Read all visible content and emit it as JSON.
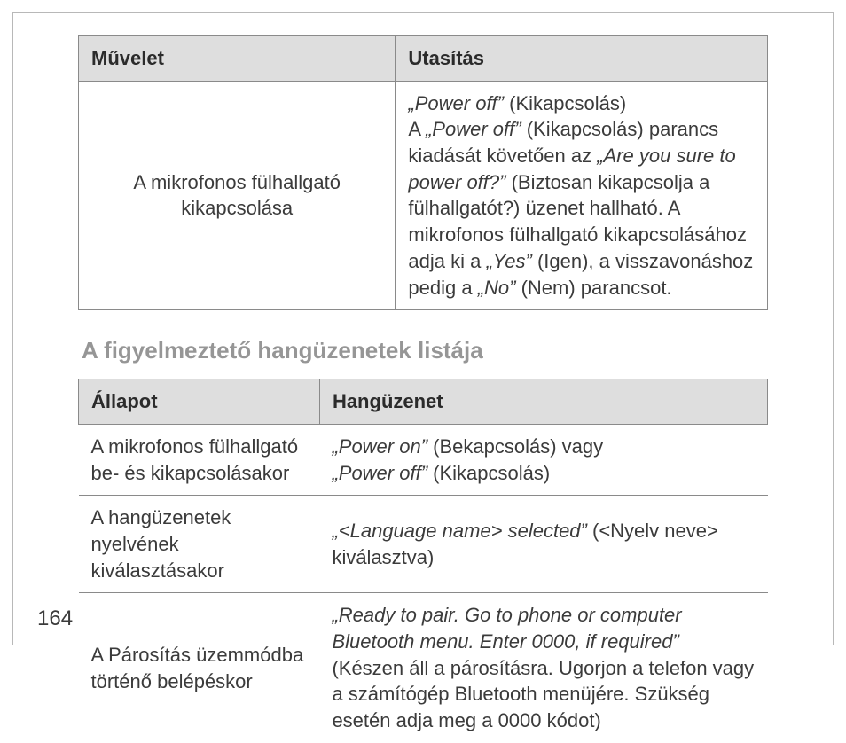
{
  "page_number": "164",
  "table1": {
    "col_widths_pct": [
      46,
      54
    ],
    "header": [
      "Művelet",
      "Utasítás"
    ],
    "row": {
      "left": "A mikrofonos fülhallgató kikapcsolása",
      "right_html": "<span class=\"em\">„Power off”</span> (Kikapcsolás)<br>A <span class=\"em\">„Power off”</span> (Kikapcsolás) parancs kiadását követően az <span class=\"em\">„Are you sure to power off?”</span> (Biztosan kikapcsolja a fülhallgatót?) üzenet hallható. A mikrofonos fülhallgató kikapcsolásához adja ki a <span class=\"em\">„Yes”</span> (Igen), a visszavonáshoz pedig a <span class=\"em\">„No”</span> (Nem) parancsot."
    }
  },
  "section_title": "A figyelmeztető hangüzenetek listája",
  "table2": {
    "col_widths_pct": [
      35,
      65
    ],
    "header": [
      "Állapot",
      "Hangüzenet"
    ],
    "rows": [
      {
        "left": "A mikrofonos fülhallgató be- és kikapcsolásakor",
        "right_html": "<span class=\"em\">„Power on”</span> (Bekapcsolás) vagy<br><span class=\"em\">„Power off”</span> (Kikapcsolás)"
      },
      {
        "left": "A hangüzenetek nyelvének kiválasztásakor",
        "right_html": "<span class=\"em\">„&lt;Language name&gt; selected”</span> (&lt;Nyelv neve&gt; kiválasztva)"
      },
      {
        "left": "A Párosítás üzemmódba történő belépéskor",
        "right_html": "<span class=\"em\">„Ready to pair. Go to phone or computer Bluetooth menu. Enter 0000, if required”</span> (Készen áll a párosításra. Ugorjon a telefon vagy a számítógép Bluetooth menüjére. Szükség esetén adja meg a 0000 kódot)"
      }
    ]
  }
}
